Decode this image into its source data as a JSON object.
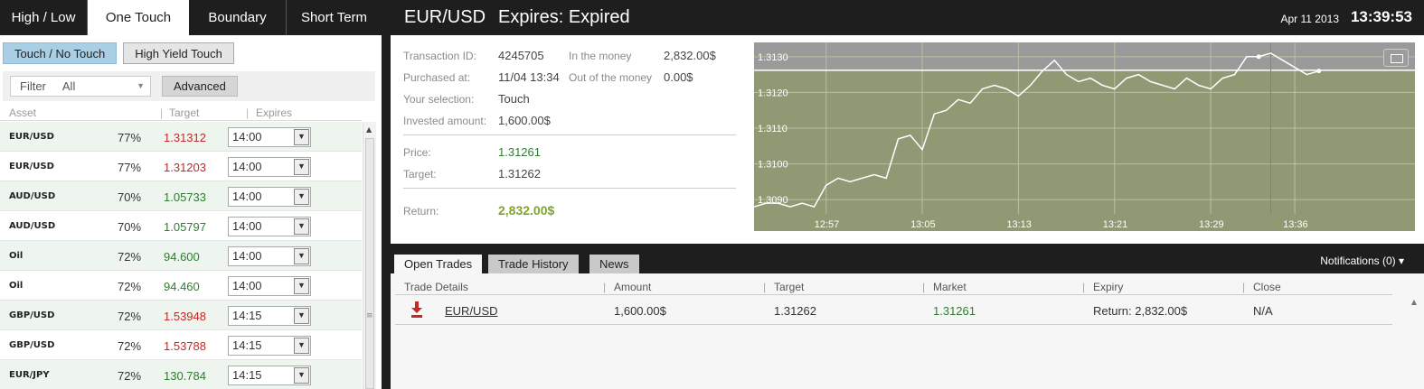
{
  "left_tabs": [
    "High / Low",
    "One Touch",
    "Boundary",
    "Short Term"
  ],
  "active_tab": 1,
  "sub_tabs": [
    "Touch / No Touch",
    "High Yield Touch"
  ],
  "filter": {
    "label": "Filter",
    "value": "All"
  },
  "advanced_label": "Advanced",
  "columns": {
    "asset": "Asset",
    "target": "Target",
    "expires": "Expires"
  },
  "assets": [
    {
      "asset": "EUR/USD",
      "pct": "77%",
      "target": "1.31312",
      "color": "red",
      "expires": "14:00"
    },
    {
      "asset": "EUR/USD",
      "pct": "77%",
      "target": "1.31203",
      "color": "red",
      "expires": "14:00"
    },
    {
      "asset": "AUD/USD",
      "pct": "70%",
      "target": "1.05733",
      "color": "green",
      "expires": "14:00"
    },
    {
      "asset": "AUD/USD",
      "pct": "70%",
      "target": "1.05797",
      "color": "green",
      "expires": "14:00"
    },
    {
      "asset": "Oil",
      "pct": "72%",
      "target": "94.600",
      "color": "green",
      "expires": "14:00"
    },
    {
      "asset": "Oil",
      "pct": "72%",
      "target": "94.460",
      "color": "green",
      "expires": "14:00"
    },
    {
      "asset": "GBP/USD",
      "pct": "72%",
      "target": "1.53948",
      "color": "red",
      "expires": "14:15"
    },
    {
      "asset": "GBP/USD",
      "pct": "72%",
      "target": "1.53788",
      "color": "red",
      "expires": "14:15"
    },
    {
      "asset": "EUR/JPY",
      "pct": "72%",
      "target": "130.784",
      "color": "green",
      "expires": "14:15"
    }
  ],
  "header": {
    "pair": "EUR/USD",
    "expires": "Expires:  Expired",
    "date": "Apr 11 2013",
    "time": "13:39:53"
  },
  "details": {
    "transaction_id_label": "Transaction ID:",
    "transaction_id": "4245705",
    "in_money_label": "In the money",
    "in_money": "2,832.00$",
    "purchased_label": "Purchased at:",
    "purchased": "11/04 13:34",
    "out_money_label": "Out of the money",
    "out_money": "0.00$",
    "selection_label": "Your selection:",
    "selection": "Touch",
    "invested_label": "Invested amount:",
    "invested": "1,600.00$",
    "price_label": "Price:",
    "price": "1.31261",
    "target_label": "Target:",
    "target": "1.31262",
    "return_label": "Return:",
    "return": "2,832.00$"
  },
  "chart_data": {
    "type": "line",
    "title": "",
    "xlabel": "",
    "ylabel": "",
    "x_ticks": [
      "12:57",
      "13:05",
      "13:13",
      "13:21",
      "13:29",
      "13:36"
    ],
    "y_ticks": [
      "1.3130",
      "1.3120",
      "1.3110",
      "1.3100",
      "1.3090"
    ],
    "ylim": [
      1.3086,
      1.3134
    ],
    "target_line": 1.31262,
    "marker_time": "13:34",
    "series": [
      {
        "x": [
          "12:51",
          "12:52",
          "12:53",
          "12:54",
          "12:55",
          "12:56",
          "12:57",
          "12:58",
          "12:59",
          "13:00",
          "13:01",
          "13:02",
          "13:03",
          "13:04",
          "13:05",
          "13:06",
          "13:07",
          "13:08",
          "13:09",
          "13:10",
          "13:11",
          "13:12",
          "13:13",
          "13:14",
          "13:15",
          "13:16",
          "13:17",
          "13:18",
          "13:19",
          "13:20",
          "13:21",
          "13:22",
          "13:23",
          "13:24",
          "13:25",
          "13:26",
          "13:27",
          "13:28",
          "13:29",
          "13:30",
          "13:31",
          "13:32",
          "13:33",
          "13:34",
          "13:35",
          "13:36",
          "13:37",
          "13:38"
        ],
        "values": [
          1.3088,
          1.3089,
          1.3089,
          1.3088,
          1.3089,
          1.3088,
          1.3094,
          1.3096,
          1.3095,
          1.3096,
          1.3097,
          1.3096,
          1.3107,
          1.3108,
          1.3104,
          1.3114,
          1.3115,
          1.3118,
          1.3117,
          1.3121,
          1.3122,
          1.3121,
          1.3119,
          1.3122,
          1.3126,
          1.3129,
          1.3125,
          1.3123,
          1.3124,
          1.3122,
          1.3121,
          1.3124,
          1.3125,
          1.3123,
          1.3122,
          1.3121,
          1.3124,
          1.3122,
          1.3121,
          1.3124,
          1.3125,
          1.313,
          1.313,
          1.3131,
          1.3129,
          1.3127,
          1.3125,
          1.3126
        ]
      }
    ]
  },
  "bottom_tabs": [
    "Open Trades",
    "Trade History",
    "News"
  ],
  "notifications": "Notifications (0)",
  "trade_columns": [
    "Trade Details",
    "Amount",
    "Target",
    "Market",
    "Expiry",
    "Close"
  ],
  "trade_row": {
    "asset": "EUR/USD",
    "amount": "1,600.00$",
    "target": "1.31262",
    "market": "1.31261",
    "expiry": "Return: 2,832.00$",
    "close": "N/A"
  }
}
